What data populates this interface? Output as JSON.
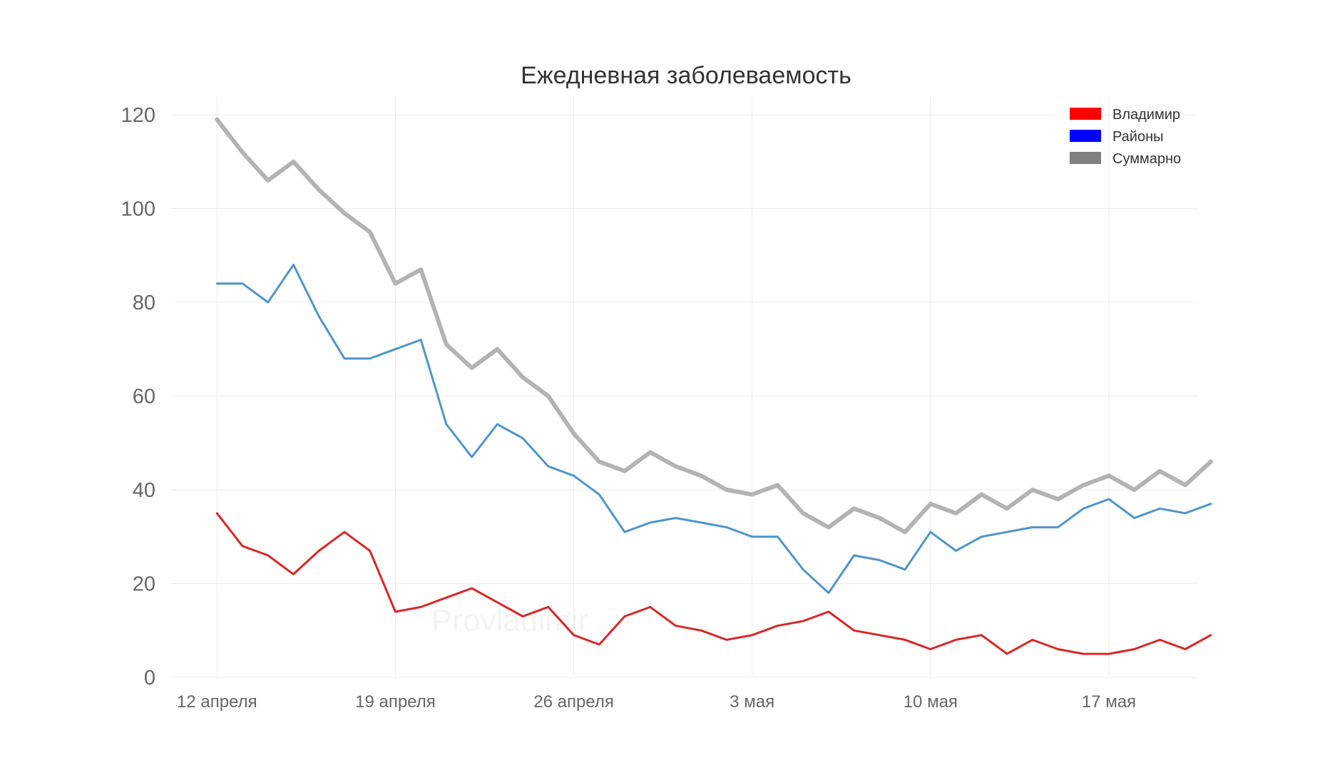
{
  "chart_data": {
    "type": "line",
    "title": "Ежедневная заболеваемость",
    "xlabel": "",
    "ylabel": "",
    "ylim": [
      0,
      120
    ],
    "yticks": [
      0,
      20,
      40,
      60,
      80,
      100,
      120
    ],
    "xlim_days": [
      -1.8,
      38.5
    ],
    "grid": true,
    "legend_position": "top-right",
    "watermark": "Provladimir",
    "x_tick_labels": [
      {
        "day": 0,
        "label": "12 апреля"
      },
      {
        "day": 7,
        "label": "19 апреля"
      },
      {
        "day": 14,
        "label": "26 апреля"
      },
      {
        "day": 21,
        "label": "3 мая"
      },
      {
        "day": 28,
        "label": "10 мая"
      },
      {
        "day": 35,
        "label": "17 мая"
      }
    ],
    "x_start_day_label": "12 апреля",
    "series": [
      {
        "name": "Суммарно",
        "color": "#b3b3b3",
        "legend_color": "#808080",
        "values": [
          119,
          112,
          106,
          110,
          104,
          99,
          95,
          84,
          87,
          71,
          66,
          70,
          64,
          60,
          52,
          46,
          44,
          48,
          45,
          43,
          40,
          39,
          41,
          35,
          32,
          36,
          34,
          31,
          37,
          35,
          39,
          36,
          40,
          38,
          41,
          43,
          40,
          44,
          41,
          46
        ]
      },
      {
        "name": "Районы",
        "color": "#4f94c8",
        "legend_color": "#0000ff",
        "values": [
          84,
          84,
          80,
          88,
          77,
          68,
          68,
          70,
          72,
          54,
          47,
          54,
          51,
          45,
          43,
          39,
          31,
          33,
          34,
          33,
          32,
          30,
          30,
          23,
          18,
          26,
          25,
          23,
          31,
          27,
          30,
          31,
          32,
          32,
          36,
          38,
          34,
          36,
          35,
          37
        ]
      },
      {
        "name": "Владимир",
        "color": "#d62728",
        "legend_color": "#ff0000",
        "values": [
          35,
          28,
          26,
          22,
          27,
          31,
          27,
          14,
          15,
          17,
          19,
          16,
          13,
          15,
          9,
          7,
          13,
          15,
          11,
          10,
          8,
          9,
          11,
          12,
          14,
          10,
          9,
          8,
          6,
          8,
          9,
          5,
          8,
          6,
          5,
          5,
          6,
          8,
          6,
          9
        ]
      }
    ],
    "legend_order": [
      "Владимир",
      "Районы",
      "Суммарно"
    ]
  }
}
